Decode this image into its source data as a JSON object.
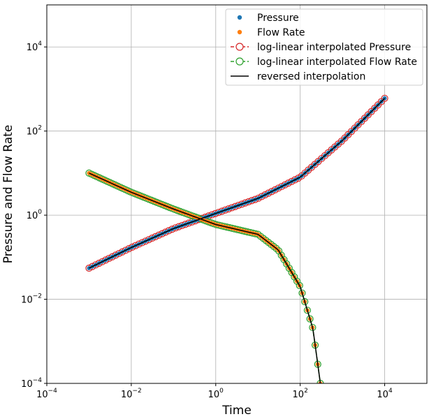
{
  "chart_data": {
    "type": "scatter",
    "title": "",
    "xlabel": "Time",
    "ylabel": "Pressure and Flow Rate",
    "xscale": "log",
    "yscale": "log",
    "xlim": [
      0.0001,
      100000
    ],
    "ylim": [
      0.0001,
      100000
    ],
    "grid": true,
    "legend_position": "top-right",
    "x_ticks": [
      {
        "value": 0.0001,
        "base": "10",
        "exp": "−4"
      },
      {
        "value": 0.01,
        "base": "10",
        "exp": "−2"
      },
      {
        "value": 1,
        "base": "10",
        "exp": "0"
      },
      {
        "value": 100,
        "base": "10",
        "exp": "2"
      },
      {
        "value": 10000,
        "base": "10",
        "exp": "4"
      }
    ],
    "y_ticks": [
      {
        "value": 0.0001,
        "base": "10",
        "exp": "−4"
      },
      {
        "value": 0.01,
        "base": "10",
        "exp": "−2"
      },
      {
        "value": 1,
        "base": "10",
        "exp": "0"
      },
      {
        "value": 100,
        "base": "10",
        "exp": "2"
      },
      {
        "value": 10000,
        "base": "10",
        "exp": "4"
      }
    ],
    "series": [
      {
        "name": "Pressure",
        "style": "dots",
        "color": "#1f77b4",
        "points": [
          [
            0.001,
            0.055
          ],
          [
            0.01,
            0.17
          ],
          [
            0.1,
            0.48
          ],
          [
            1,
            1.1
          ],
          [
            10,
            2.5
          ],
          [
            100,
            8
          ],
          [
            1000,
            60
          ],
          [
            10000,
            600
          ]
        ]
      },
      {
        "name": "Flow Rate",
        "style": "dots",
        "color": "#ff7f0e",
        "points": [
          [
            0.001,
            10
          ],
          [
            0.01,
            3.5
          ],
          [
            0.1,
            1.4
          ],
          [
            1,
            0.6
          ],
          [
            10,
            0.35
          ],
          [
            30,
            0.15
          ],
          [
            100,
            0.02
          ],
          [
            200,
            0.002
          ],
          [
            300,
            0.0001
          ]
        ]
      },
      {
        "name": "log-linear interpolated Pressure",
        "style": "dashed-open-circles",
        "color": "#d62728",
        "points": [
          [
            0.001,
            0.055
          ],
          [
            0.01,
            0.17
          ],
          [
            0.1,
            0.48
          ],
          [
            1,
            1.1
          ],
          [
            10,
            2.5
          ],
          [
            100,
            8
          ],
          [
            1000,
            60
          ],
          [
            10000,
            600
          ]
        ]
      },
      {
        "name": "log-linear interpolated Flow Rate",
        "style": "dashed-open-circles",
        "color": "#2ca02c",
        "points": [
          [
            0.001,
            10
          ],
          [
            0.01,
            3.5
          ],
          [
            0.1,
            1.4
          ],
          [
            1,
            0.6
          ],
          [
            10,
            0.35
          ],
          [
            30,
            0.15
          ],
          [
            100,
            0.02
          ],
          [
            200,
            0.002
          ],
          [
            300,
            0.0001
          ]
        ]
      },
      {
        "name": "reversed interpolation",
        "style": "line",
        "color": "#000000",
        "points": [
          [
            0.001,
            10
          ],
          [
            0.01,
            3.5
          ],
          [
            0.1,
            1.4
          ],
          [
            1,
            0.6
          ],
          [
            10,
            0.35
          ],
          [
            30,
            0.15
          ],
          [
            100,
            0.02
          ],
          [
            200,
            0.002
          ],
          [
            300,
            0.0001
          ]
        ],
        "points_b": [
          [
            0.001,
            0.055
          ],
          [
            0.01,
            0.17
          ],
          [
            0.1,
            0.48
          ],
          [
            1,
            1.1
          ],
          [
            10,
            2.5
          ],
          [
            100,
            8
          ],
          [
            1000,
            60
          ],
          [
            10000,
            600
          ]
        ]
      }
    ]
  }
}
